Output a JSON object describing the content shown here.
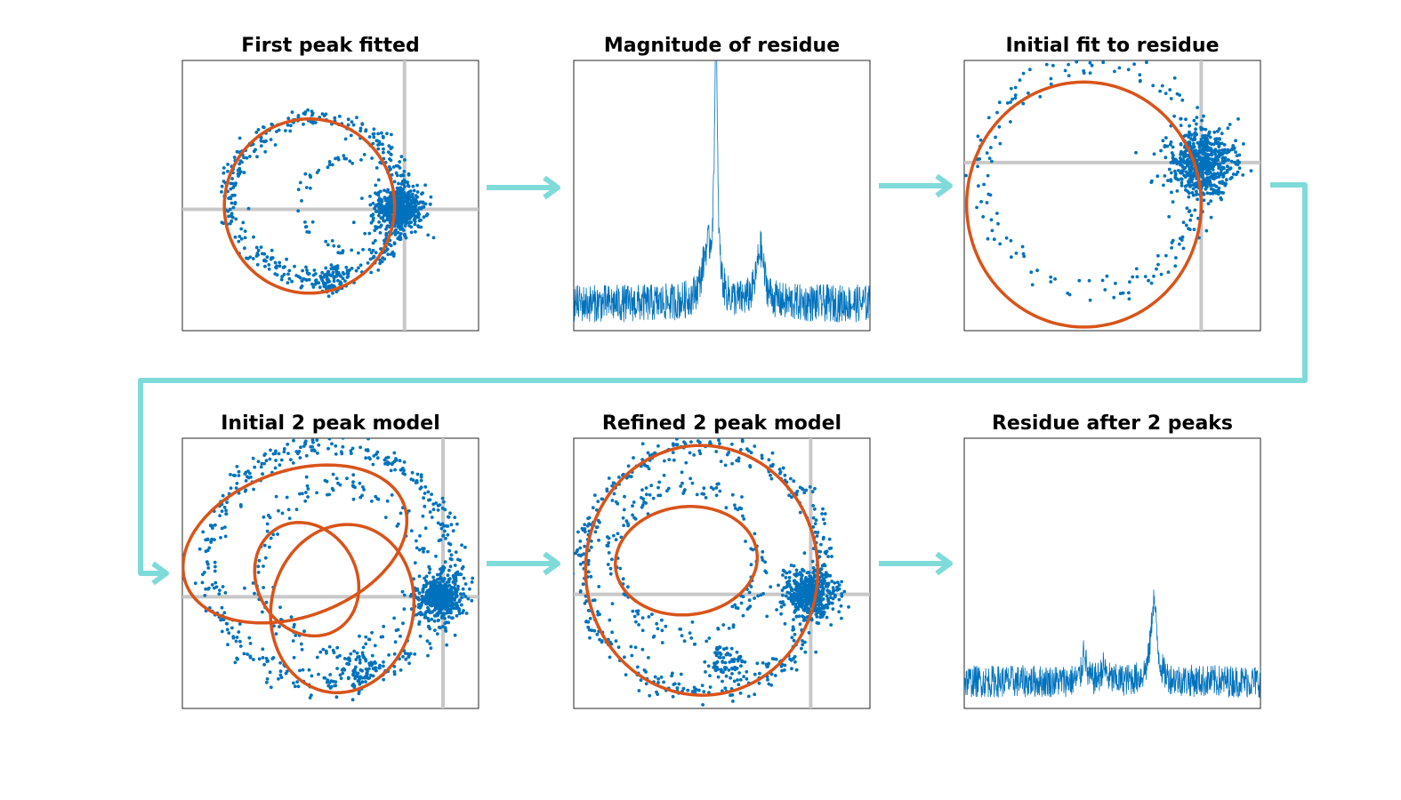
{
  "figure": {
    "colors": {
      "points": "#0072BD",
      "fit_curve": "#D95319",
      "axis_cross": "#c8c8c8",
      "flow_arrow": "#7fdbda",
      "frame": "#262626"
    },
    "flow_sequence": [
      "p1",
      "p2",
      "p3",
      "p4",
      "p5",
      "p6"
    ]
  },
  "chart_data": [
    {
      "id": "p1",
      "title": "First peak fitted",
      "type": "scatter",
      "xlabel": "",
      "ylabel": "",
      "xlim": [
        -1.8,
        0.6
      ],
      "ylim": [
        -1.1,
        1.35
      ],
      "grid": false,
      "crosshair": [
        0,
        0
      ],
      "series": [
        {
          "kind": "points",
          "values_described_as": "scattered measurement points in complex plane",
          "loops": [
            {
              "cx": -0.7,
              "cy": 0.1,
              "r": 0.72,
              "n": 420,
              "noise": 0.04
            },
            {
              "cx": -0.42,
              "cy": 0.05,
              "r": 0.42,
              "n": 90,
              "noise": 0.03
            },
            {
              "cx": -0.05,
              "cy": 0.0,
              "r": 0.09,
              "n": 500,
              "noise": 0.08
            },
            {
              "cx": -0.58,
              "cy": -0.65,
              "r": 0.08,
              "n": 60,
              "noise": 0.03
            }
          ]
        },
        {
          "kind": "fit",
          "ellipses": [
            {
              "cx": -0.77,
              "cy": 0.03,
              "rx": 0.69,
              "ry": 0.79,
              "rot": 0
            }
          ]
        }
      ]
    },
    {
      "id": "p2",
      "title": "Magnitude of residue",
      "type": "line",
      "xlabel": "",
      "ylabel": "",
      "xlim": [
        0,
        1
      ],
      "ylim": [
        0,
        1
      ],
      "grid": false,
      "spectrum": {
        "noise_floor": 0.1,
        "noise_amp": 0.07,
        "peaks": [
          {
            "center": 0.48,
            "height": 0.96,
            "width": 0.006
          },
          {
            "center": 0.45,
            "height": 0.18,
            "width": 0.02
          },
          {
            "center": 0.63,
            "height": 0.2,
            "width": 0.015
          }
        ]
      }
    },
    {
      "id": "p3",
      "title": "Initial fit to residue",
      "type": "scatter",
      "xlabel": "",
      "ylabel": "",
      "xlim": [
        -2.0,
        0.5
      ],
      "ylim": [
        -1.4,
        0.85
      ],
      "grid": false,
      "crosshair": [
        0,
        0
      ],
      "series": [
        {
          "kind": "points",
          "loops": [
            {
              "cx": -0.9,
              "cy": -0.1,
              "r": 0.95,
              "n": 180,
              "noise": 0.05
            },
            {
              "cx": 0.0,
              "cy": 0.0,
              "r": 0.15,
              "n": 620,
              "noise": 0.1
            }
          ]
        },
        {
          "kind": "fit",
          "ellipses": [
            {
              "cx": -0.99,
              "cy": -0.35,
              "rx": 0.99,
              "ry": 1.02,
              "rot": 0
            }
          ]
        }
      ]
    },
    {
      "id": "p4",
      "title": "Initial 2 peak model",
      "type": "scatter",
      "xlabel": "",
      "ylabel": "",
      "xlim": [
        -2.2,
        0.3
      ],
      "ylim": [
        -0.95,
        1.35
      ],
      "grid": false,
      "crosshair": [
        0,
        0
      ],
      "series": [
        {
          "kind": "points",
          "loops": [
            {
              "cx": -0.95,
              "cy": 0.28,
              "r": 1.02,
              "n": 430,
              "noise": 0.05
            },
            {
              "cx": -0.85,
              "cy": 0.25,
              "r": 0.7,
              "n": 150,
              "noise": 0.05
            },
            {
              "cx": -0.03,
              "cy": 0.0,
              "r": 0.1,
              "n": 500,
              "noise": 0.08
            },
            {
              "cx": -0.7,
              "cy": -0.6,
              "r": 0.1,
              "n": 70,
              "noise": 0.03
            }
          ]
        },
        {
          "kind": "fit",
          "ellipses": [
            {
              "cx": -1.25,
              "cy": 0.45,
              "rx": 0.98,
              "ry": 0.62,
              "rot": 0.35
            },
            {
              "cx": -0.85,
              "cy": -0.1,
              "rx": 0.6,
              "ry": 0.72,
              "rot": -0.2
            },
            {
              "cx": -1.15,
              "cy": 0.15,
              "rx": 0.42,
              "ry": 0.5,
              "rot": 0.5
            }
          ]
        }
      ]
    },
    {
      "id": "p5",
      "title": "Refined 2 peak model",
      "type": "scatter",
      "xlabel": "",
      "ylabel": "",
      "xlim": [
        -2.0,
        0.5
      ],
      "ylim": [
        -0.95,
        1.3
      ],
      "grid": false,
      "crosshair": [
        0,
        0
      ],
      "series": [
        {
          "kind": "points",
          "loops": [
            {
              "cx": -0.9,
              "cy": 0.22,
              "r": 1.02,
              "n": 430,
              "noise": 0.05
            },
            {
              "cx": -1.05,
              "cy": 0.28,
              "r": 0.62,
              "n": 160,
              "noise": 0.05
            },
            {
              "cx": -0.02,
              "cy": 0.0,
              "r": 0.1,
              "n": 520,
              "noise": 0.08
            },
            {
              "cx": -0.72,
              "cy": -0.55,
              "r": 0.1,
              "n": 70,
              "noise": 0.03
            }
          ]
        },
        {
          "kind": "fit",
          "ellipses": [
            {
              "cx": -0.92,
              "cy": 0.2,
              "rx": 0.98,
              "ry": 1.04,
              "rot": 0.05
            },
            {
              "cx": -1.05,
              "cy": 0.28,
              "rx": 0.6,
              "ry": 0.45,
              "rot": 0.1
            }
          ]
        }
      ]
    },
    {
      "id": "p6",
      "title": "Residue after 2 peaks",
      "type": "line",
      "xlabel": "",
      "ylabel": "",
      "xlim": [
        0,
        1
      ],
      "ylim": [
        0,
        1
      ],
      "grid": false,
      "spectrum": {
        "noise_floor": 0.1,
        "noise_amp": 0.06,
        "peaks": [
          {
            "center": 0.64,
            "height": 0.3,
            "width": 0.012
          },
          {
            "center": 0.405,
            "height": 0.13,
            "width": 0.006
          },
          {
            "center": 0.47,
            "height": 0.05,
            "width": 0.01
          }
        ]
      }
    }
  ]
}
